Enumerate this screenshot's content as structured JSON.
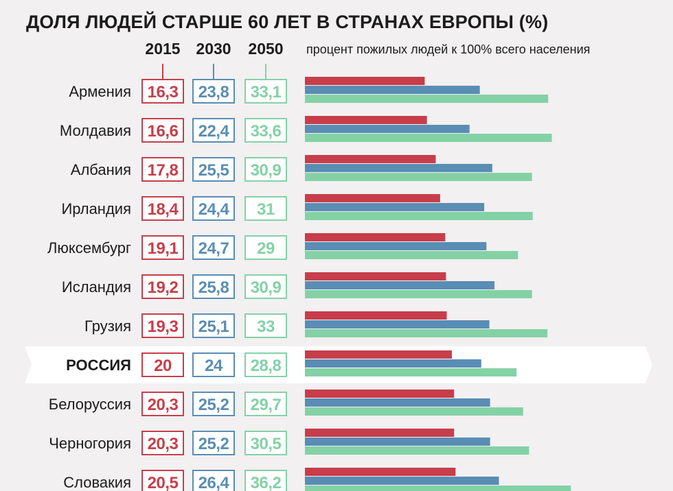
{
  "chart_data": {
    "type": "bar",
    "title": "ДОЛЯ ЛЮДЕЙ СТАРШЕ 60 ЛЕТ В СТРАНАХ ЕВРОПЫ (%)",
    "caption": "процент пожилых людей к 100% всего населения",
    "categories": [
      "Армения",
      "Молдавия",
      "Албания",
      "Ирландия",
      "Люксембург",
      "Исландия",
      "Грузия",
      "РОССИЯ",
      "Белоруссия",
      "Черногория",
      "Словакия"
    ],
    "highlight_category": "РОССИЯ",
    "series": [
      {
        "name": "2015",
        "color": "#c73e4a",
        "values": [
          16.3,
          16.6,
          17.8,
          18.4,
          19.1,
          19.2,
          19.3,
          20,
          20.3,
          20.3,
          20.5
        ],
        "labels": [
          "16,3",
          "16,6",
          "17,8",
          "18,4",
          "19,1",
          "19,2",
          "19,3",
          "20",
          "20,3",
          "20,3",
          "20,5"
        ]
      },
      {
        "name": "2030",
        "color": "#5a8db4",
        "values": [
          23.8,
          22.4,
          25.5,
          24.4,
          24.7,
          25.8,
          25.1,
          24,
          25.2,
          25.2,
          26.4
        ],
        "labels": [
          "23,8",
          "22,4",
          "25,5",
          "24,4",
          "24,7",
          "25,8",
          "25,1",
          "24",
          "25,2",
          "25,2",
          "26,4"
        ]
      },
      {
        "name": "2050",
        "color": "#84d1a6",
        "values": [
          33.1,
          33.6,
          30.9,
          31,
          29,
          30.9,
          33,
          28.8,
          29.7,
          30.5,
          36.2
        ],
        "labels": [
          "33,1",
          "33,6",
          "30,9",
          "31",
          "29",
          "30,9",
          "33",
          "28,8",
          "29,7",
          "30,5",
          "36,2"
        ]
      }
    ],
    "colors": {
      "background": "#f2f0f1",
      "highlight_row": "#ffffff",
      "text": "#1c1c1c"
    }
  }
}
